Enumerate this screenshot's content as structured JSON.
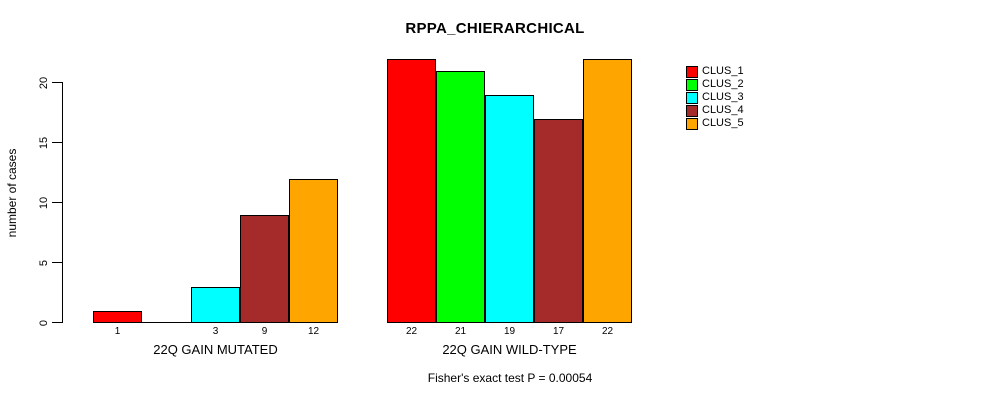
{
  "title": "RPPA_CHIERARCHICAL",
  "chart_data": {
    "type": "bar",
    "title": "RPPA_CHIERARCHICAL",
    "ylabel": "number of cases",
    "xlabel": "",
    "ylim": [
      0,
      22
    ],
    "yticks": [
      0,
      5,
      10,
      15,
      20
    ],
    "grid": false,
    "legend_position": "top-right",
    "categories": [
      "22Q GAIN MUTATED",
      "22Q GAIN WILD-TYPE"
    ],
    "series": [
      {
        "name": "CLUS_1",
        "color": "#ff0000",
        "values": [
          1,
          22
        ]
      },
      {
        "name": "CLUS_2",
        "color": "#00ff00",
        "values": [
          0,
          21
        ]
      },
      {
        "name": "CLUS_3",
        "color": "#00ffff",
        "values": [
          3,
          19
        ]
      },
      {
        "name": "CLUS_4",
        "color": "#a52a2a",
        "values": [
          9,
          17
        ]
      },
      {
        "name": "CLUS_5",
        "color": "#ffa500",
        "values": [
          12,
          22
        ]
      }
    ],
    "bar_value_labels": {
      "22Q GAIN MUTATED": [
        "1",
        "",
        "3",
        "9",
        "12"
      ],
      "22Q GAIN WILD-TYPE": [
        "22",
        "21",
        "19",
        "17",
        "22"
      ]
    },
    "annotation": "Fisher's exact test P = 0.00054"
  }
}
